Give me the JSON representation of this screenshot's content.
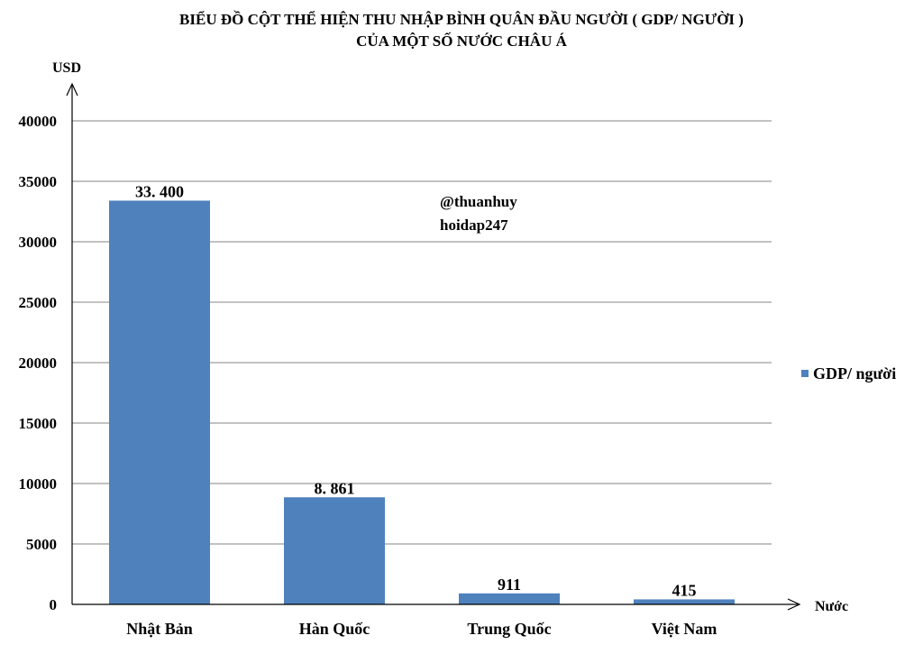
{
  "chart_data": {
    "type": "bar",
    "title_lines": [
      "BIỂU ĐỒ CỘT THỂ HIỆN THU NHẬP BÌNH QUÂN ĐẦU NGƯỜI ( GDP/ NGƯỜI )",
      "CỦA MỘT SỐ NƯỚC CHÂU Á"
    ],
    "ylabel": "USD",
    "xlabel": "Nước",
    "categories": [
      "Nhật Bản",
      "Hàn Quốc",
      "Trung Quốc",
      "Việt Nam"
    ],
    "series": [
      {
        "name": "GDP/ người",
        "color": "#4f81bd",
        "values": [
          33400,
          8861,
          911,
          415
        ],
        "labels": [
          "33. 400",
          "8. 861",
          "911",
          "415"
        ]
      }
    ],
    "ylim": [
      0,
      40000
    ],
    "yticks": [
      0,
      5000,
      10000,
      15000,
      20000,
      25000,
      30000,
      35000,
      40000
    ],
    "grid": true,
    "legend_position": "right",
    "watermark_lines": [
      "@thuanhuy",
      "hoidap247"
    ]
  }
}
